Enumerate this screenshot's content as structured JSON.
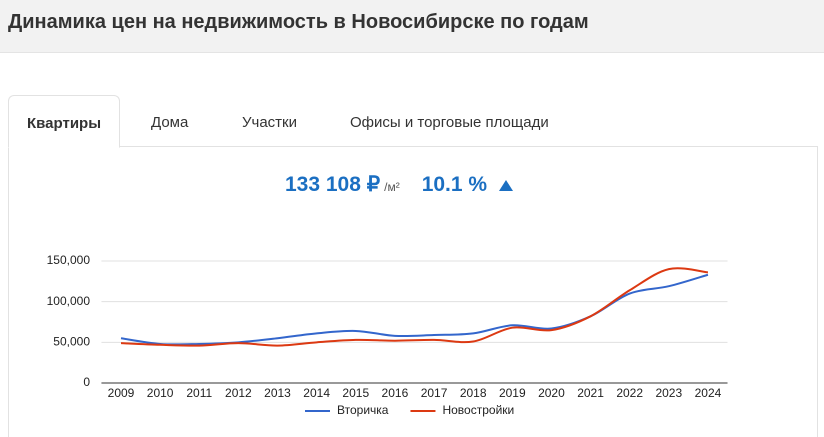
{
  "header": {
    "title": "Динамика цен на недвижимость в Новосибирске по годам"
  },
  "tabs": [
    "Квартиры",
    "Дома",
    "Участки",
    "Офисы и торговые площади"
  ],
  "summary": {
    "price": "133 108 ₽",
    "unit": "/м²",
    "change": "10.1 %"
  },
  "chart_data": {
    "type": "line",
    "categories": [
      "2009",
      "2010",
      "2011",
      "2012",
      "2013",
      "2014",
      "2015",
      "2016",
      "2017",
      "2018",
      "2019",
      "2020",
      "2021",
      "2022",
      "2023",
      "2024"
    ],
    "series": [
      {
        "name": "Вторичка",
        "color": "#3366cc",
        "values": [
          55000,
          48000,
          48000,
          50000,
          55000,
          61000,
          64000,
          58000,
          59000,
          61000,
          71000,
          67000,
          82000,
          110000,
          119000,
          133108
        ]
      },
      {
        "name": "Новостройки",
        "color": "#dc3912",
        "values": [
          49000,
          47000,
          46000,
          49000,
          46000,
          50000,
          53000,
          52000,
          53000,
          51000,
          68000,
          65000,
          82000,
          114000,
          140000,
          136000
        ]
      }
    ],
    "ylim": [
      0,
      150000
    ],
    "yticks": [
      0,
      {
        "value": 50000,
        "label": "50,000"
      },
      {
        "value": 100000,
        "label": "100,000"
      },
      {
        "value": 150000,
        "label": "150,000"
      }
    ],
    "grid": true,
    "legend": "bottom"
  }
}
